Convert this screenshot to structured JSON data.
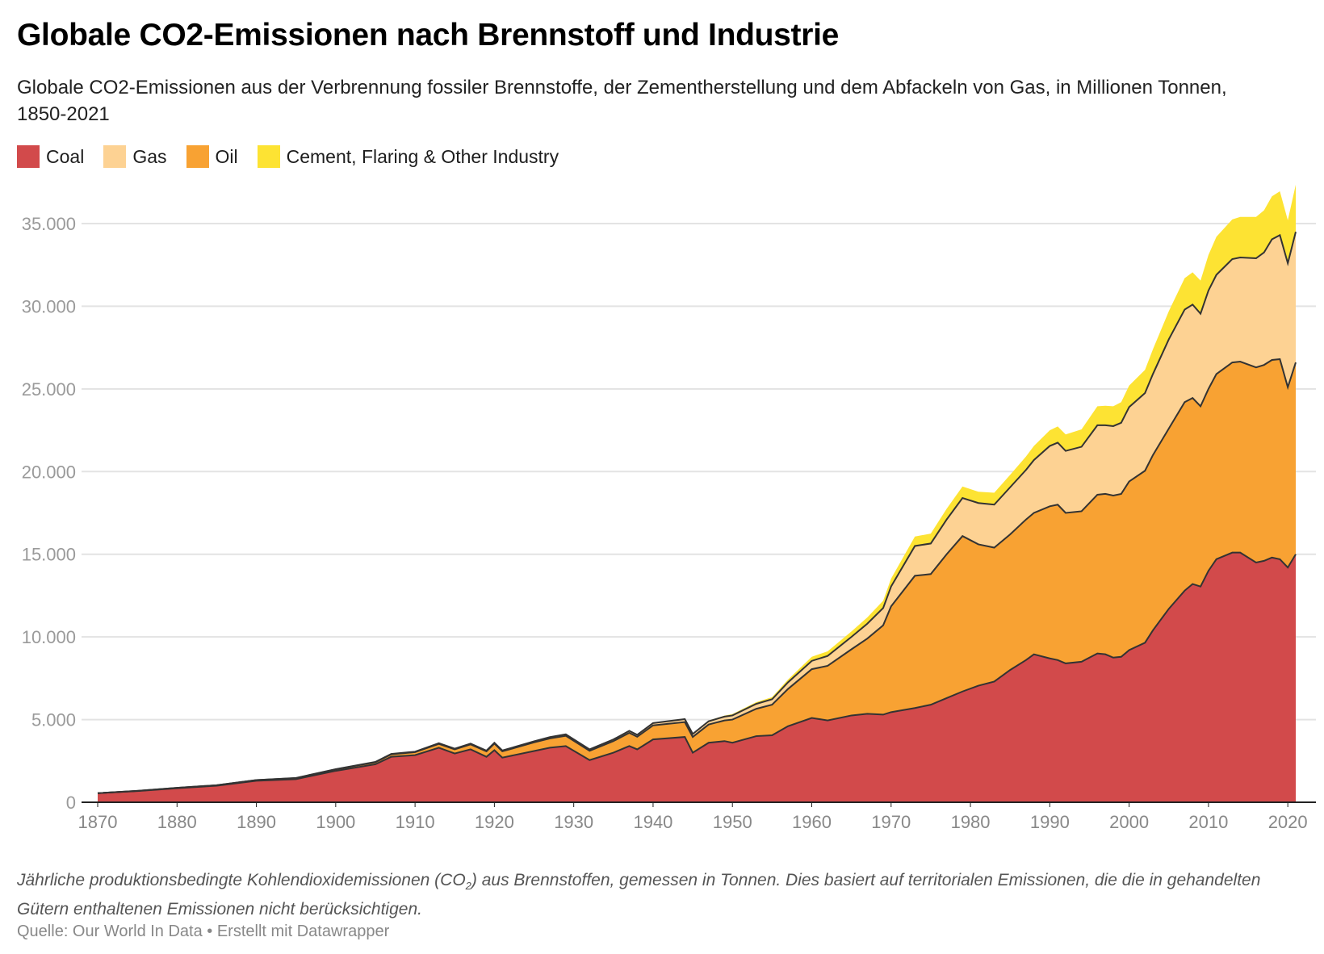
{
  "header": {
    "title": "Globale CO2-Emissionen nach Brennstoff und Industrie",
    "subtitle": "Globale CO2-Emissionen aus der Verbrennung fossiler Brennstoffe, der Zementherstellung und dem Abfackeln von Gas, in Millionen Tonnen, 1850-2021"
  },
  "legend": [
    {
      "label": "Coal",
      "color": "#d24a4b"
    },
    {
      "label": "Gas",
      "color": "#fdd293"
    },
    {
      "label": "Oil",
      "color": "#f8a233"
    },
    {
      "label": "Cement, Flaring & Other Industry",
      "color": "#fde333"
    }
  ],
  "footer": {
    "notes_before": "Jährliche produktionsbedingte Kohlendioxidemissionen (CO",
    "notes_sub": "2",
    "notes_after": ") aus Brennstoffen, gemessen in Tonnen. Dies basiert auf territorialen Emissionen, die die in gehandelten Gütern enthaltenen Emissionen nicht berücksichtigen.",
    "source": "Quelle: Our World In Data • Erstellt mit Datawrapper"
  },
  "chart_data": {
    "type": "area",
    "stacked": true,
    "title": "Globale CO2-Emissionen nach Brennstoff und Industrie",
    "xlabel": "",
    "ylabel": "Millionen Tonnen",
    "ylim": [
      0,
      37000
    ],
    "xlim": [
      1870,
      2021
    ],
    "yticks": [
      0,
      5000,
      10000,
      15000,
      20000,
      25000,
      30000,
      35000
    ],
    "ytick_labels": [
      "0",
      "5.000",
      "10.000",
      "15.000",
      "20.000",
      "25.000",
      "30.000",
      "35.000"
    ],
    "xticks": [
      1870,
      1880,
      1890,
      1900,
      1910,
      1920,
      1930,
      1940,
      1950,
      1960,
      1970,
      1980,
      1990,
      2000,
      2010,
      2020
    ],
    "xtick_labels": [
      "1870",
      "1880",
      "1890",
      "1900",
      "1910",
      "1920",
      "1930",
      "1940",
      "1950",
      "1960",
      "1970",
      "1980",
      "1990",
      "2000",
      "2010",
      "2020"
    ],
    "grid": true,
    "legend_position": "top-left",
    "stack_order": [
      "Coal",
      "Oil",
      "Gas",
      "Cement, Flaring & Other Industry"
    ],
    "x": [
      1870,
      1875,
      1880,
      1885,
      1890,
      1895,
      1900,
      1905,
      1907,
      1910,
      1913,
      1915,
      1917,
      1919,
      1920,
      1921,
      1925,
      1927,
      1929,
      1932,
      1935,
      1937,
      1938,
      1940,
      1944,
      1945,
      1947,
      1949,
      1950,
      1953,
      1955,
      1957,
      1960,
      1962,
      1965,
      1967,
      1969,
      1970,
      1973,
      1975,
      1977,
      1979,
      1981,
      1983,
      1985,
      1987,
      1988,
      1990,
      1991,
      1992,
      1994,
      1996,
      1997,
      1998,
      1999,
      2000,
      2002,
      2003,
      2005,
      2007,
      2008,
      2009,
      2010,
      2011,
      2013,
      2014,
      2016,
      2017,
      2018,
      2019,
      2020,
      2021
    ],
    "series": [
      {
        "name": "Coal",
        "values": [
          550,
          680,
          850,
          1000,
          1300,
          1400,
          1900,
          2300,
          2750,
          2850,
          3300,
          2950,
          3200,
          2750,
          3150,
          2700,
          3100,
          3300,
          3400,
          2550,
          3000,
          3400,
          3200,
          3800,
          3950,
          3000,
          3600,
          3700,
          3600,
          4000,
          4050,
          4600,
          5100,
          4950,
          5250,
          5350,
          5300,
          5450,
          5700,
          5900,
          6300,
          6700,
          7050,
          7300,
          8000,
          8600,
          8950,
          8700,
          8600,
          8400,
          8500,
          9000,
          8950,
          8750,
          8800,
          9200,
          9650,
          10400,
          11700,
          12800,
          13200,
          13050,
          14000,
          14700,
          15100,
          15100,
          14500,
          14600,
          14800,
          14700,
          14200,
          15000
        ]
      },
      {
        "name": "Oil",
        "values": [
          0,
          10,
          20,
          30,
          40,
          60,
          90,
          120,
          150,
          180,
          230,
          250,
          300,
          330,
          400,
          380,
          520,
          560,
          620,
          560,
          700,
          800,
          760,
          850,
          900,
          950,
          1100,
          1250,
          1400,
          1650,
          1850,
          2250,
          2950,
          3300,
          4000,
          4550,
          5400,
          6400,
          8000,
          7900,
          8700,
          9400,
          8550,
          8100,
          8200,
          8500,
          8550,
          9200,
          9400,
          9100,
          9100,
          9600,
          9700,
          9800,
          9850,
          10200,
          10400,
          10600,
          10900,
          11400,
          11250,
          10900,
          11000,
          11200,
          11500,
          11550,
          11800,
          11850,
          11950,
          12100,
          10900,
          11600
        ]
      },
      {
        "name": "Gas",
        "values": [
          0,
          0,
          0,
          0,
          5,
          10,
          15,
          20,
          25,
          30,
          40,
          40,
          45,
          45,
          50,
          50,
          70,
          80,
          90,
          90,
          100,
          120,
          120,
          140,
          180,
          180,
          200,
          230,
          250,
          300,
          330,
          400,
          500,
          600,
          750,
          900,
          1050,
          1200,
          1800,
          1850,
          2100,
          2300,
          2500,
          2600,
          2850,
          3000,
          3200,
          3650,
          3750,
          3750,
          3900,
          4200,
          4150,
          4200,
          4300,
          4500,
          4700,
          4900,
          5400,
          5600,
          5650,
          5600,
          5950,
          6000,
          6250,
          6300,
          6600,
          6800,
          7300,
          7500,
          7500,
          7900
        ]
      },
      {
        "name": "Cement, Flaring & Other Industry",
        "values": [
          0,
          0,
          0,
          0,
          0,
          0,
          0,
          5,
          5,
          10,
          10,
          10,
          10,
          10,
          10,
          10,
          15,
          15,
          20,
          20,
          25,
          30,
          30,
          35,
          40,
          40,
          45,
          60,
          80,
          100,
          130,
          170,
          250,
          280,
          330,
          380,
          440,
          480,
          570,
          600,
          650,
          700,
          680,
          720,
          750,
          810,
          850,
          950,
          980,
          1000,
          1050,
          1150,
          1180,
          1200,
          1250,
          1300,
          1400,
          1500,
          1700,
          1900,
          1950,
          2000,
          2150,
          2300,
          2400,
          2450,
          2500,
          2550,
          2600,
          2650,
          2600,
          2850
        ]
      }
    ]
  }
}
